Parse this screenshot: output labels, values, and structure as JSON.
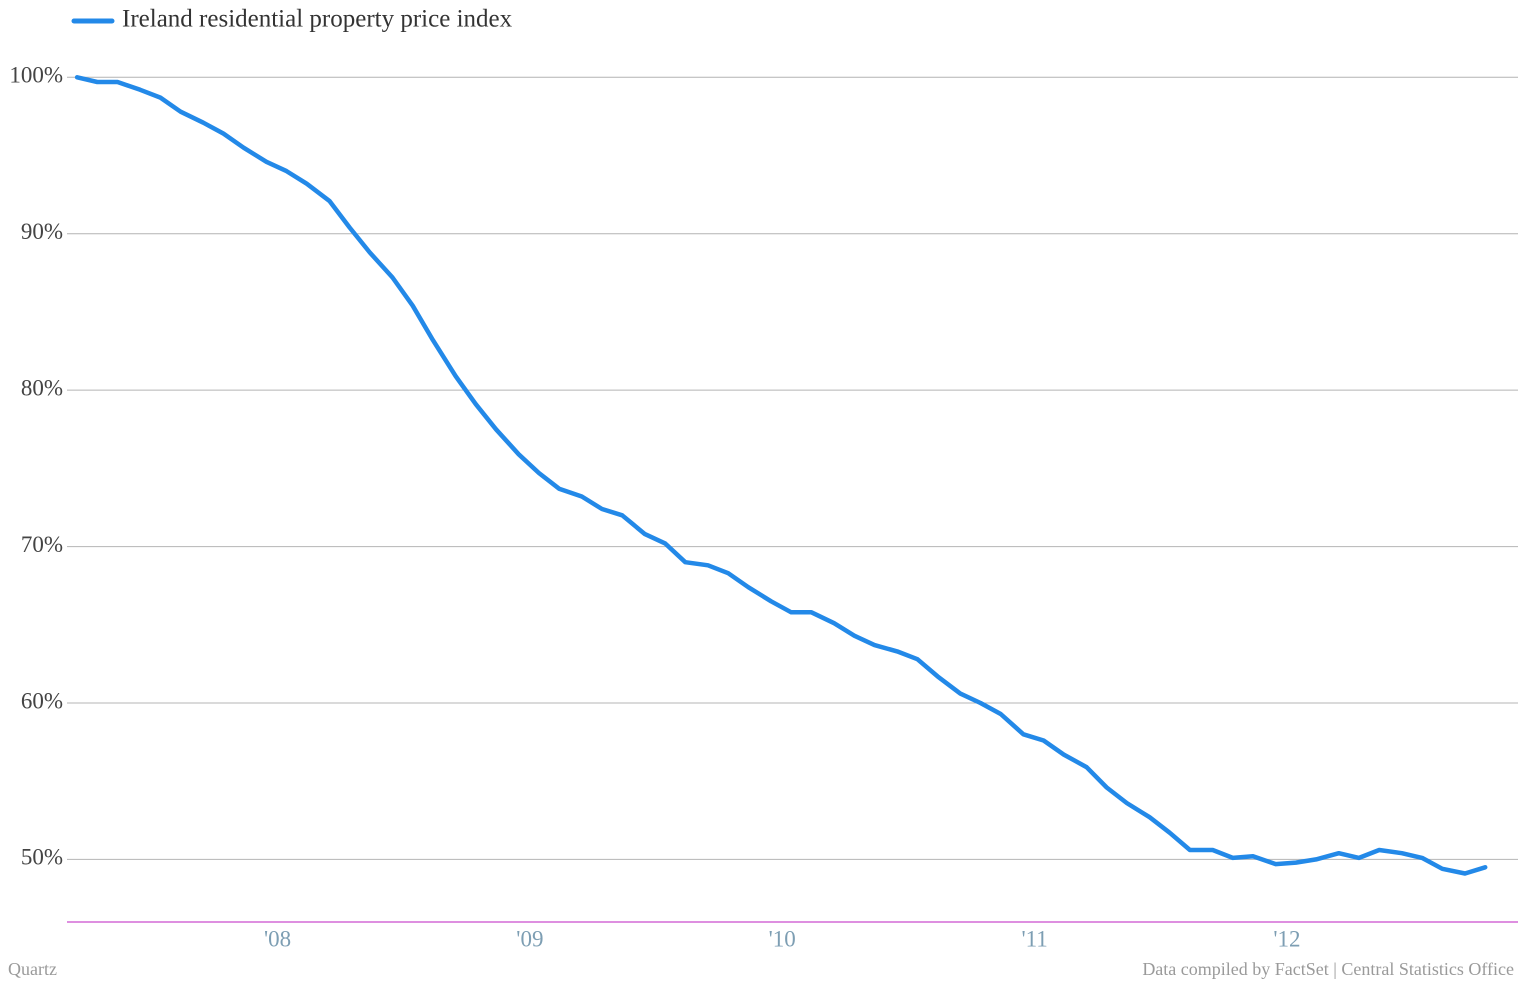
{
  "chart_data": {
    "type": "line",
    "x": [
      2007.17,
      2007.25,
      2007.33,
      2007.42,
      2007.5,
      2007.58,
      2007.67,
      2007.75,
      2007.83,
      2007.92,
      2008.0,
      2008.08,
      2008.17,
      2008.25,
      2008.33,
      2008.42,
      2008.5,
      2008.58,
      2008.67,
      2008.75,
      2008.83,
      2008.92,
      2009.0,
      2009.08,
      2009.17,
      2009.25,
      2009.33,
      2009.42,
      2009.5,
      2009.58,
      2009.67,
      2009.75,
      2009.83,
      2009.92,
      2010.0,
      2010.08,
      2010.17,
      2010.25,
      2010.33,
      2010.42,
      2010.5,
      2010.58,
      2010.67,
      2010.75,
      2010.83,
      2010.92,
      2011.0,
      2011.08,
      2011.17,
      2011.25,
      2011.33,
      2011.42,
      2011.5,
      2011.58,
      2011.67,
      2011.75,
      2011.83,
      2011.92,
      2012.0,
      2012.08,
      2012.17,
      2012.25,
      2012.33,
      2012.42,
      2012.5,
      2012.58,
      2012.67,
      2012.75
    ],
    "series": [
      {
        "name": "Ireland residential property price index",
        "color": "#2389e8",
        "values": [
          100,
          99.7,
          99.7,
          99.2,
          98.7,
          97.8,
          97.1,
          96.4,
          95.5,
          94.6,
          94.0,
          93.2,
          92.1,
          90.4,
          88.8,
          87.2,
          85.4,
          83.2,
          80.9,
          79.1,
          77.5,
          75.9,
          74.7,
          73.7,
          73.2,
          72.4,
          72.0,
          70.8,
          70.2,
          69.0,
          68.8,
          68.3,
          67.4,
          66.5,
          65.8,
          65.8,
          65.1,
          64.3,
          63.7,
          63.3,
          62.8,
          61.7,
          60.6,
          60.0,
          59.3,
          58.0,
          57.6,
          56.7,
          55.9,
          54.6,
          53.6,
          52.7,
          51.7,
          50.6,
          50.6,
          50.1,
          50.2,
          49.7,
          49.8,
          50.0,
          50.4,
          50.1,
          50.6,
          50.4,
          50.1,
          49.4,
          49.1,
          49.5
        ]
      }
    ],
    "xlim": [
      2007.13,
      2012.88
    ],
    "xticks": [
      {
        "value": 2008,
        "label": "'08"
      },
      {
        "value": 2009,
        "label": "'09"
      },
      {
        "value": 2010,
        "label": "'10"
      },
      {
        "value": 2011,
        "label": "'11"
      },
      {
        "value": 2012,
        "label": "'12"
      }
    ],
    "ylim": [
      46,
      102
    ],
    "yticks": [
      {
        "value": 50,
        "label": "50%"
      },
      {
        "value": 60,
        "label": "60%"
      },
      {
        "value": 70,
        "label": "70%"
      },
      {
        "value": 80,
        "label": "80%"
      },
      {
        "value": 90,
        "label": "90%"
      },
      {
        "value": 100,
        "label": "100%"
      }
    ],
    "grid": true,
    "legend": "top-left",
    "credit": "Quartz",
    "source": "Data compiled by FactSet | Central Statistics Office"
  }
}
